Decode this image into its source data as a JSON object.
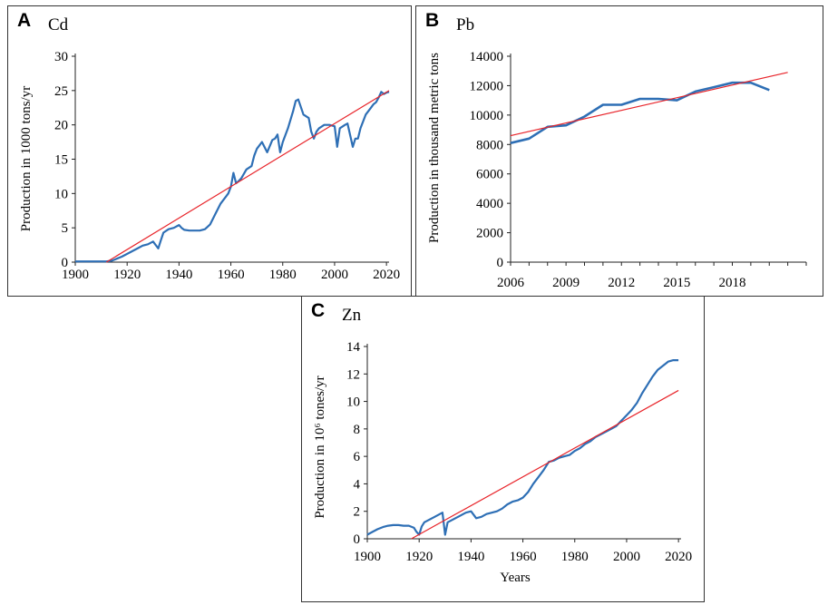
{
  "panels": [
    {
      "label": "A",
      "element": "Cd"
    },
    {
      "label": "B",
      "element": "Pb"
    },
    {
      "label": "C",
      "element": "Zn"
    }
  ],
  "colors": {
    "series": "#2e6fb5",
    "trend": "#e8242a",
    "fill": "#a9bfdc",
    "axis": "#222222"
  },
  "chart_data": [
    {
      "type": "area",
      "title": "Cd",
      "xlabel": "",
      "ylabel": "Production in 1000 tons/yr",
      "xlim": [
        1900,
        2021
      ],
      "ylim": [
        0,
        30
      ],
      "xticks": [
        1900,
        1920,
        1940,
        1960,
        1980,
        2000,
        2020
      ],
      "yticks": [
        0,
        5,
        10,
        15,
        20,
        25,
        30
      ],
      "grid": false,
      "series": [
        {
          "name": "Cd production",
          "x": [
            1900,
            1905,
            1910,
            1912,
            1914,
            1916,
            1918,
            1920,
            1922,
            1924,
            1926,
            1928,
            1930,
            1932,
            1933,
            1934,
            1936,
            1938,
            1940,
            1941,
            1942,
            1944,
            1946,
            1948,
            1950,
            1952,
            1954,
            1956,
            1958,
            1959,
            1960,
            1961,
            1962,
            1963,
            1964,
            1966,
            1968,
            1969,
            1970,
            1972,
            1974,
            1976,
            1977,
            1978,
            1979,
            1980,
            1982,
            1984,
            1985,
            1986,
            1988,
            1990,
            1991,
            1992,
            1993,
            1994,
            1996,
            1998,
            2000,
            2001,
            2002,
            2004,
            2005,
            2006,
            2007,
            2008,
            2009,
            2010,
            2012,
            2014,
            2015,
            2016,
            2017,
            2018,
            2019,
            2020,
            2021
          ],
          "values": [
            0.1,
            0.1,
            0.1,
            0.1,
            0.2,
            0.5,
            0.8,
            1.2,
            1.6,
            2.0,
            2.4,
            2.6,
            3.0,
            2.0,
            3.2,
            4.3,
            4.8,
            5.0,
            5.4,
            5.0,
            4.7,
            4.6,
            4.6,
            4.6,
            4.8,
            5.5,
            7.0,
            8.5,
            9.5,
            10.0,
            11.0,
            13.0,
            11.5,
            11.8,
            12.2,
            13.5,
            14.0,
            15.5,
            16.5,
            17.5,
            16.0,
            17.8,
            18.0,
            18.6,
            16.0,
            17.5,
            19.5,
            22.0,
            23.5,
            23.7,
            21.5,
            21.0,
            19.0,
            18.0,
            19.0,
            19.5,
            20.0,
            20.0,
            19.8,
            16.8,
            19.5,
            20.0,
            20.2,
            18.5,
            16.8,
            18.0,
            18.0,
            19.5,
            21.5,
            22.5,
            23.0,
            23.3,
            24.0,
            24.8,
            24.5,
            24.7,
            24.8
          ]
        },
        {
          "name": "Linear trend",
          "x": [
            1912,
            2021
          ],
          "values": [
            0.0,
            25.0
          ]
        }
      ]
    },
    {
      "type": "line",
      "title": "Pb",
      "xlabel": "",
      "ylabel": "Production in thousand metric tons",
      "xlim": [
        2006,
        2022
      ],
      "ylim": [
        0,
        14000
      ],
      "xticks": [
        2006,
        2009,
        2012,
        2015,
        2018
      ],
      "yticks": [
        0,
        2000,
        4000,
        6000,
        8000,
        10000,
        12000,
        14000
      ],
      "grid": false,
      "series": [
        {
          "name": "Pb production",
          "x": [
            2006,
            2007,
            2008,
            2009,
            2010,
            2011,
            2012,
            2013,
            2014,
            2015,
            2016,
            2017,
            2018,
            2019,
            2020
          ],
          "values": [
            8100,
            8400,
            9200,
            9300,
            9900,
            10700,
            10700,
            11100,
            11100,
            11000,
            11600,
            11900,
            12200,
            12200,
            11700
          ]
        },
        {
          "name": "Linear trend",
          "x": [
            2006,
            2021
          ],
          "values": [
            8600,
            12900
          ]
        }
      ]
    },
    {
      "type": "area",
      "title": "Zn",
      "xlabel": "Years",
      "ylabel": "Production in 10⁶ tones/yr",
      "xlim": [
        1900,
        2021
      ],
      "ylim": [
        0,
        14
      ],
      "xticks": [
        1900,
        1920,
        1940,
        1960,
        1980,
        2000,
        2020
      ],
      "yticks": [
        0,
        2,
        4,
        6,
        8,
        10,
        12,
        14
      ],
      "grid": false,
      "series": [
        {
          "name": "Zn production",
          "x": [
            1900,
            1902,
            1904,
            1906,
            1908,
            1910,
            1912,
            1914,
            1916,
            1918,
            1919,
            1920,
            1921,
            1922,
            1924,
            1926,
            1928,
            1929,
            1930,
            1931,
            1932,
            1934,
            1936,
            1938,
            1940,
            1942,
            1944,
            1946,
            1948,
            1950,
            1952,
            1954,
            1956,
            1958,
            1960,
            1962,
            1964,
            1966,
            1968,
            1970,
            1972,
            1974,
            1976,
            1978,
            1980,
            1982,
            1984,
            1986,
            1988,
            1990,
            1992,
            1994,
            1996,
            1998,
            2000,
            2002,
            2004,
            2006,
            2008,
            2010,
            2012,
            2014,
            2016,
            2018,
            2020
          ],
          "values": [
            0.3,
            0.5,
            0.7,
            0.85,
            0.95,
            1.0,
            1.0,
            0.95,
            0.95,
            0.8,
            0.5,
            0.3,
            0.9,
            1.2,
            1.4,
            1.6,
            1.8,
            1.9,
            0.3,
            1.2,
            1.3,
            1.5,
            1.7,
            1.9,
            2.0,
            1.5,
            1.6,
            1.8,
            1.9,
            2.0,
            2.2,
            2.5,
            2.7,
            2.8,
            3.0,
            3.4,
            4.0,
            4.5,
            5.0,
            5.6,
            5.7,
            5.9,
            6.0,
            6.1,
            6.4,
            6.6,
            6.9,
            7.1,
            7.4,
            7.6,
            7.8,
            8.0,
            8.2,
            8.6,
            9.0,
            9.4,
            9.9,
            10.6,
            11.2,
            11.8,
            12.3,
            12.6,
            12.9,
            13.0,
            13.0
          ]
        },
        {
          "name": "Linear trend",
          "x": [
            1917,
            2020
          ],
          "values": [
            0.0,
            10.8
          ]
        }
      ]
    }
  ]
}
